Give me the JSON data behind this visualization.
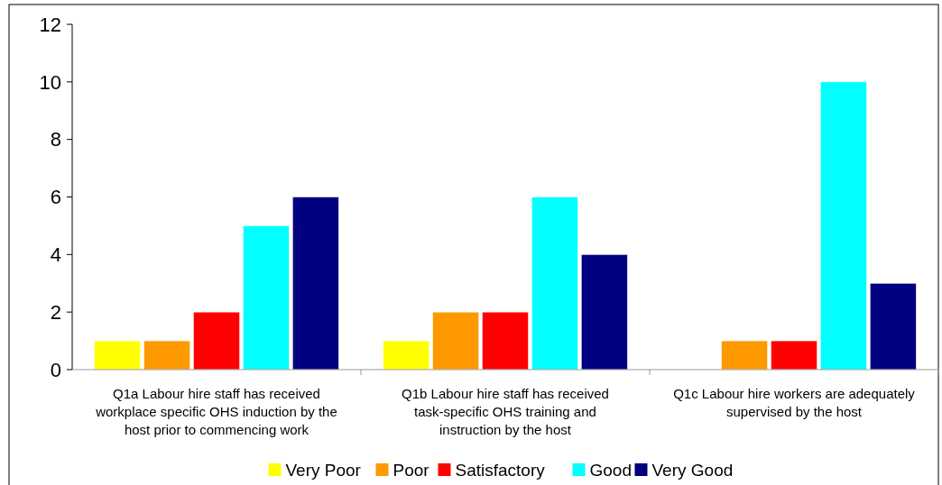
{
  "chart_data": {
    "type": "bar",
    "categories": [
      "Q1a Labour hire staff has received workplace specific OHS induction by the host prior to commencing work",
      "Q1b Labour hire staff has received task-specific OHS training and instruction by the host",
      "Q1c Labour hire workers are adequately supervised by the host"
    ],
    "series": [
      {
        "name": "Very Poor",
        "color": "#ffff00",
        "values": [
          1,
          1,
          0
        ]
      },
      {
        "name": "Poor",
        "color": "#ff9900",
        "values": [
          1,
          2,
          1
        ]
      },
      {
        "name": "Satisfactory",
        "color": "#ff0000",
        "values": [
          2,
          2,
          1
        ]
      },
      {
        "name": "Good",
        "color": "#00ffff",
        "values": [
          5,
          6,
          10
        ]
      },
      {
        "name": "Very Good",
        "color": "#000080",
        "values": [
          6,
          4,
          3
        ]
      }
    ],
    "ylim": [
      0,
      12
    ],
    "yticks": [
      0,
      2,
      4,
      6,
      8,
      10,
      12
    ],
    "grid": false,
    "legend": "bottom"
  }
}
